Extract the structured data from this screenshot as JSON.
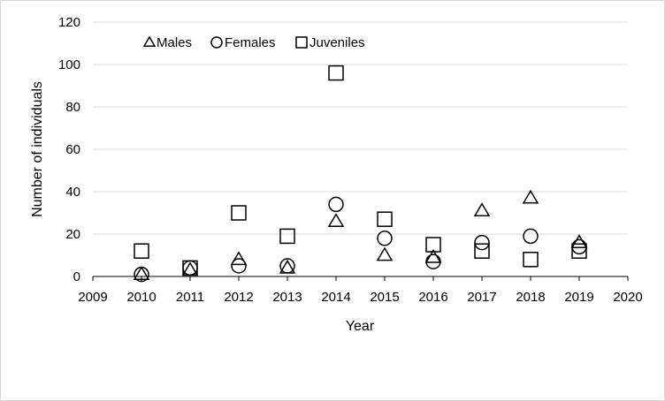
{
  "chart_data": {
    "type": "scatter",
    "title": "",
    "xlabel": "Year",
    "ylabel": "Number of individuals",
    "xlim": [
      2009,
      2020
    ],
    "ylim": [
      0,
      120
    ],
    "x_ticks": [
      2009,
      2010,
      2011,
      2012,
      2013,
      2014,
      2015,
      2016,
      2017,
      2018,
      2019,
      2020
    ],
    "y_ticks": [
      0,
      20,
      40,
      60,
      80,
      100,
      120
    ],
    "grid": "horizontal",
    "legend_position": "top-left",
    "series": [
      {
        "name": "Males",
        "marker": "triangle",
        "x": [
          2010,
          2011,
          2012,
          2013,
          2014,
          2015,
          2016,
          2017,
          2018,
          2019
        ],
        "y": [
          1,
          3,
          8,
          4,
          26,
          10,
          9,
          31,
          37,
          16
        ]
      },
      {
        "name": "Females",
        "marker": "circle",
        "x": [
          2010,
          2011,
          2012,
          2013,
          2014,
          2015,
          2016,
          2017,
          2018,
          2019
        ],
        "y": [
          1,
          4,
          5,
          5,
          34,
          18,
          7,
          16,
          19,
          14
        ]
      },
      {
        "name": "Juveniles",
        "marker": "square",
        "x": [
          2010,
          2011,
          2012,
          2013,
          2014,
          2015,
          2016,
          2017,
          2018,
          2019
        ],
        "y": [
          12,
          4,
          30,
          19,
          96,
          27,
          15,
          12,
          8,
          12
        ]
      }
    ],
    "colors": {
      "marker_stroke": "#000000",
      "grid": "#d9d9d9",
      "axis": "#000000"
    }
  }
}
